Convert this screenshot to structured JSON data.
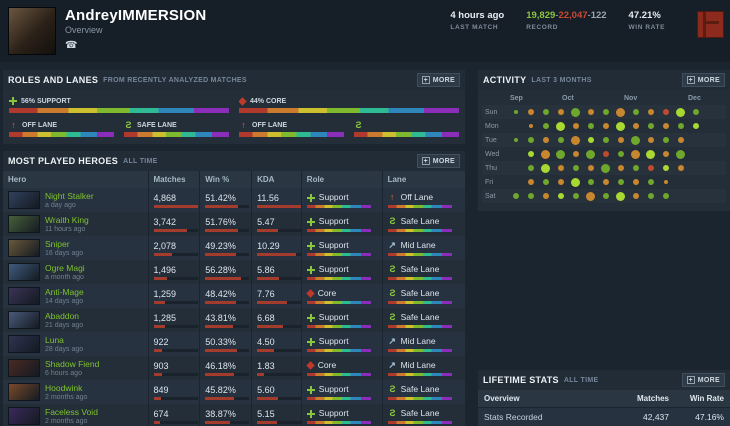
{
  "icons": {
    "phone": "☎",
    "more_plus": "+",
    "offlane": "↑",
    "midlane": "↗",
    "safelane": "S"
  },
  "header": {
    "player_name": "AndreyIMMERSION",
    "subtitle": "Overview",
    "last_match": {
      "value": "4 hours ago",
      "label": "LAST MATCH"
    },
    "record": {
      "wins": "19,829",
      "losses": "22,047",
      "abandons": "122",
      "sep": "-",
      "label": "RECORD"
    },
    "win_rate": {
      "value": "47.21%",
      "label": "WIN RATE"
    }
  },
  "colors": {
    "accent_green": "#7ec32d",
    "win_green": "#8bc53f",
    "loss_red": "#c74a33",
    "bar_red": "#a43c2e",
    "panel": "#232e39",
    "page_bg": "#1b2530"
  },
  "roles_lanes": {
    "title": "ROLES AND LANES",
    "subtitle": "FROM RECENTLY ANALYZED MATCHES",
    "more_label": "MORE",
    "roles": [
      {
        "icon": "support",
        "label": "56% SUPPORT"
      },
      {
        "icon": "core",
        "label": "44% CORE"
      }
    ],
    "lanes": [
      {
        "icon": "offlane",
        "label": "OFF LANE"
      },
      {
        "icon": "safelane",
        "label": "SAFE LANE"
      },
      {
        "icon": "offlane",
        "label": "OFF LANE"
      },
      {
        "icon": "safelane",
        "label": ""
      }
    ]
  },
  "most_played": {
    "title": "MOST PLAYED HEROES",
    "subtitle": "ALL TIME",
    "more_label": "MORE",
    "columns": [
      "Hero",
      "Matches",
      "Win %",
      "KDA",
      "Role",
      "Lane"
    ],
    "rows": [
      {
        "hero": "Night Stalker",
        "ago": "a day ago",
        "matches": "4,868",
        "win_pct": "51.42%",
        "kda": "11.56",
        "role": "Support",
        "role_icon": "support",
        "lane": "Off Lane",
        "lane_icon": "offlane",
        "portrait": "#31415c"
      },
      {
        "hero": "Wraith King",
        "ago": "11 hours ago",
        "matches": "3,742",
        "win_pct": "51.76%",
        "kda": "5.47",
        "role": "Support",
        "role_icon": "support",
        "lane": "Safe Lane",
        "lane_icon": "safelane",
        "portrait": "#47603a"
      },
      {
        "hero": "Sniper",
        "ago": "16 days ago",
        "matches": "2,078",
        "win_pct": "49.23%",
        "kda": "10.29",
        "role": "Support",
        "role_icon": "support",
        "lane": "Mid Lane",
        "lane_icon": "midlane",
        "portrait": "#6a583a"
      },
      {
        "hero": "Ogre Magi",
        "ago": "a month ago",
        "matches": "1,496",
        "win_pct": "56.28%",
        "kda": "5.86",
        "role": "Support",
        "role_icon": "support",
        "lane": "Safe Lane",
        "lane_icon": "safelane",
        "portrait": "#3f5c7d"
      },
      {
        "hero": "Anti-Mage",
        "ago": "14 days ago",
        "matches": "1,259",
        "win_pct": "48.42%",
        "kda": "7.76",
        "role": "Core",
        "role_icon": "core",
        "lane": "Safe Lane",
        "lane_icon": "safelane",
        "portrait": "#3a3456"
      },
      {
        "hero": "Abaddon",
        "ago": "21 days ago",
        "matches": "1,285",
        "win_pct": "43.81%",
        "kda": "6.68",
        "role": "Support",
        "role_icon": "support",
        "lane": "Safe Lane",
        "lane_icon": "safelane",
        "portrait": "#4a5a7a"
      },
      {
        "hero": "Luna",
        "ago": "28 days ago",
        "matches": "922",
        "win_pct": "50.33%",
        "kda": "4.50",
        "role": "Support",
        "role_icon": "support",
        "lane": "Mid Lane",
        "lane_icon": "midlane",
        "portrait": "#2e3450"
      },
      {
        "hero": "Shadow Fiend",
        "ago": "6 hours ago",
        "matches": "903",
        "win_pct": "46.18%",
        "kda": "1.83",
        "role": "Core",
        "role_icon": "core",
        "lane": "Mid Lane",
        "lane_icon": "midlane",
        "portrait": "#4a2a22"
      },
      {
        "hero": "Hoodwink",
        "ago": "2 months ago",
        "matches": "849",
        "win_pct": "45.82%",
        "kda": "5.60",
        "role": "Support",
        "role_icon": "support",
        "lane": "Safe Lane",
        "lane_icon": "safelane",
        "portrait": "#7a4a2a"
      },
      {
        "hero": "Faceless Void",
        "ago": "2 months ago",
        "matches": "674",
        "win_pct": "38.87%",
        "kda": "5.15",
        "role": "Support",
        "role_icon": "support",
        "lane": "Safe Lane",
        "lane_icon": "safelane",
        "portrait": "#3a2a5a"
      }
    ]
  },
  "activity": {
    "title": "ACTIVITY",
    "subtitle": "LAST 3 MONTHS",
    "more_label": "MORE",
    "months": [
      "Sep",
      "Oct",
      "Nov",
      "Dec"
    ],
    "month_offsets": [
      2,
      54,
      116,
      180
    ],
    "days": [
      "Sun",
      "Mon",
      "Tue",
      "Wed",
      "Thu",
      "Fri",
      "Sat"
    ],
    "legend": {
      "G": "#a8d832",
      "g": "#6fa62c",
      "o": "#c8872e",
      "r": "#c04a2c"
    },
    "grid": [
      [
        "g1",
        "o2",
        "g2",
        "o2",
        "g3",
        "o2",
        "g2",
        "o3",
        "g2",
        "o2",
        "r2",
        "G3",
        "g2"
      ],
      [
        "",
        "o1",
        "g2",
        "G3",
        "o2",
        "g2",
        "o2",
        "G3",
        "o2",
        "g2",
        "o2",
        "g2",
        "G2"
      ],
      [
        "g1",
        "g2",
        "o2",
        "g2",
        "o3",
        "G2",
        "g2",
        "o2",
        "g3",
        "o2",
        "g2",
        "o2",
        ""
      ],
      [
        "",
        "G2",
        "o3",
        "g3",
        "o2",
        "g3",
        "r2",
        "g2",
        "o3",
        "G3",
        "o2",
        "g3",
        ""
      ],
      [
        "",
        "g2",
        "G3",
        "o2",
        "g2",
        "o2",
        "g3",
        "o2",
        "g2",
        "r2",
        "G2",
        "o2",
        ""
      ],
      [
        "",
        "o2",
        "g2",
        "o2",
        "G3",
        "g2",
        "o2",
        "g2",
        "o2",
        "g2",
        "o1",
        "",
        ""
      ],
      [
        "g2",
        "g2",
        "o2",
        "G2",
        "g2",
        "o3",
        "g2",
        "G3",
        "o2",
        "g2",
        "g2",
        "",
        ""
      ]
    ]
  },
  "lifetime": {
    "title": "LIFETIME STATS",
    "subtitle": "ALL TIME",
    "more_label": "MORE",
    "columns": [
      "Overview",
      "Matches",
      "Win Rate"
    ],
    "rows": [
      {
        "label": "Stats Recorded",
        "matches": "42,437",
        "win_rate": "47.16%"
      }
    ]
  }
}
